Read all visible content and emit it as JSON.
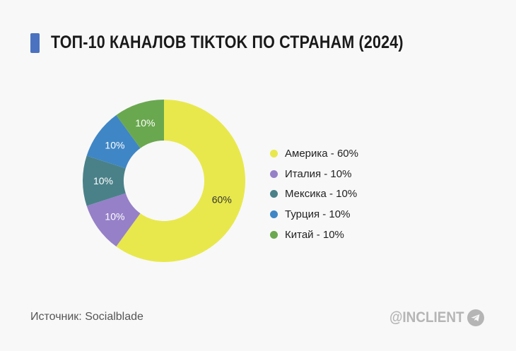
{
  "title": "ТОП-10 КАНАЛОВ TIKTOK ПО СТРАНАМ (2024)",
  "source": "Источник: Socialblade",
  "brand": "@INCLIENT",
  "chart_data": {
    "type": "pie",
    "donut": true,
    "title": "ТОП-10 КАНАЛОВ TIKTOK ПО СТРАНАМ (2024)",
    "categories": [
      "Америка",
      "Италия",
      "Мексика",
      "Турция",
      "Китай"
    ],
    "values": [
      60,
      10,
      10,
      10,
      10
    ],
    "data_labels": [
      "60%",
      "10%",
      "10%",
      "10%",
      "10%"
    ],
    "legend": [
      "Америка - 60%",
      "Италия - 10%",
      "Мексика - 10%",
      "Турция - 10%",
      "Китай - 10%"
    ],
    "colors": [
      "#e8e84c",
      "#9680c8",
      "#4a8189",
      "#3f86c6",
      "#6aa84f"
    ],
    "legend_placement": "right"
  }
}
